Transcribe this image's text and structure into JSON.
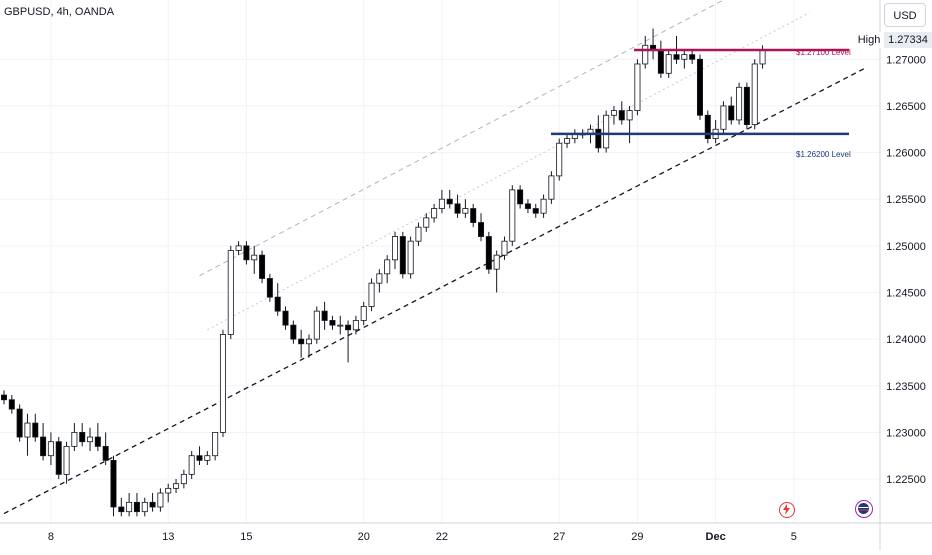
{
  "header": {
    "symbol": "GBPUSD, 4h, OANDA"
  },
  "currency_button": {
    "label": "USD"
  },
  "high_marker": {
    "label": "High",
    "price": "1.27334"
  },
  "levels": {
    "upper": {
      "label": "$1.27100 Level",
      "value": 1.271,
      "color": "#ad1457"
    },
    "lower": {
      "label": "$1.26200 Level",
      "value": 1.262,
      "color": "#1e3a78"
    }
  },
  "colors": {
    "up_body": "#ffffff",
    "down_body": "#000000",
    "wick": "#131722",
    "grid": "#f0f3fa",
    "axis_text": "#131722"
  },
  "chart_data": {
    "type": "candlestick",
    "title": "GBPUSD, 4h, OANDA",
    "y_range": [
      1.2205,
      1.2755
    ],
    "y_ticks": [
      "1.27000",
      "1.26500",
      "1.26000",
      "1.25500",
      "1.25000",
      "1.24500",
      "1.24000",
      "1.23500",
      "1.23000",
      "1.22500"
    ],
    "y_tick_values": [
      1.27,
      1.265,
      1.26,
      1.255,
      1.25,
      1.245,
      1.24,
      1.235,
      1.23,
      1.225
    ],
    "x_ticks": [
      {
        "label": "8",
        "bar": 6
      },
      {
        "label": "13",
        "bar": 21
      },
      {
        "label": "15",
        "bar": 31
      },
      {
        "label": "20",
        "bar": 46
      },
      {
        "label": "22",
        "bar": 56
      },
      {
        "label": "27",
        "bar": 71
      },
      {
        "label": "29",
        "bar": 81
      },
      {
        "label": "Dec",
        "bar": 91
      },
      {
        "label": "5",
        "bar": 101
      }
    ],
    "candles": [
      [
        1.234,
        1.2345,
        1.233,
        1.2335
      ],
      [
        1.2335,
        1.234,
        1.232,
        1.2325
      ],
      [
        1.2325,
        1.233,
        1.229,
        1.2295
      ],
      [
        1.2295,
        1.232,
        1.2275,
        1.231
      ],
      [
        1.231,
        1.232,
        1.229,
        1.2295
      ],
      [
        1.2295,
        1.231,
        1.227,
        1.2275
      ],
      [
        1.2275,
        1.23,
        1.2265,
        1.229
      ],
      [
        1.229,
        1.2295,
        1.225,
        1.2255
      ],
      [
        1.2255,
        1.229,
        1.2245,
        1.2285
      ],
      [
        1.2285,
        1.231,
        1.228,
        1.23
      ],
      [
        1.23,
        1.231,
        1.2285,
        1.229
      ],
      [
        1.229,
        1.2305,
        1.228,
        1.2295
      ],
      [
        1.2295,
        1.231,
        1.228,
        1.2285
      ],
      [
        1.2285,
        1.23,
        1.2265,
        1.227
      ],
      [
        1.227,
        1.2275,
        1.221,
        1.222
      ],
      [
        1.222,
        1.223,
        1.221,
        1.2215
      ],
      [
        1.2215,
        1.2235,
        1.221,
        1.2225
      ],
      [
        1.2225,
        1.2235,
        1.221,
        1.2215
      ],
      [
        1.2215,
        1.223,
        1.221,
        1.2225
      ],
      [
        1.2225,
        1.2235,
        1.2215,
        1.222
      ],
      [
        1.222,
        1.224,
        1.2215,
        1.2235
      ],
      [
        1.2235,
        1.2245,
        1.2225,
        1.224
      ],
      [
        1.224,
        1.225,
        1.2235,
        1.2245
      ],
      [
        1.2245,
        1.226,
        1.224,
        1.2255
      ],
      [
        1.2255,
        1.228,
        1.225,
        1.2275
      ],
      [
        1.2275,
        1.2285,
        1.2265,
        1.227
      ],
      [
        1.227,
        1.228,
        1.2265,
        1.2275
      ],
      [
        1.2275,
        1.23,
        1.227,
        1.23
      ],
      [
        1.23,
        1.241,
        1.2295,
        1.2405
      ],
      [
        1.2405,
        1.25,
        1.24,
        1.2495
      ],
      [
        1.2495,
        1.2505,
        1.249,
        1.25
      ],
      [
        1.25,
        1.2505,
        1.248,
        1.2485
      ],
      [
        1.2485,
        1.25,
        1.247,
        1.249
      ],
      [
        1.249,
        1.2495,
        1.246,
        1.2465
      ],
      [
        1.2465,
        1.247,
        1.244,
        1.2445
      ],
      [
        1.2445,
        1.246,
        1.2425,
        1.243
      ],
      [
        1.243,
        1.2435,
        1.241,
        1.2415
      ],
      [
        1.2415,
        1.242,
        1.2395,
        1.24
      ],
      [
        1.24,
        1.241,
        1.238,
        1.2395
      ],
      [
        1.2395,
        1.2405,
        1.238,
        1.24
      ],
      [
        1.24,
        1.2435,
        1.2395,
        1.243
      ],
      [
        1.243,
        1.244,
        1.241,
        1.242
      ],
      [
        1.242,
        1.2425,
        1.241,
        1.2415
      ],
      [
        1.2415,
        1.2425,
        1.2405,
        1.2415
      ],
      [
        1.2415,
        1.242,
        1.2375,
        1.241
      ],
      [
        1.241,
        1.2425,
        1.2405,
        1.242
      ],
      [
        1.242,
        1.244,
        1.2415,
        1.2435
      ],
      [
        1.2435,
        1.2465,
        1.243,
        1.246
      ],
      [
        1.246,
        1.2475,
        1.245,
        1.247
      ],
      [
        1.247,
        1.249,
        1.246,
        1.2485
      ],
      [
        1.2485,
        1.2515,
        1.2475,
        1.251
      ],
      [
        1.251,
        1.2515,
        1.2465,
        1.247
      ],
      [
        1.247,
        1.251,
        1.2465,
        1.2505
      ],
      [
        1.2505,
        1.2525,
        1.25,
        1.252
      ],
      [
        1.252,
        1.2535,
        1.2515,
        1.253
      ],
      [
        1.253,
        1.2545,
        1.2525,
        1.254
      ],
      [
        1.254,
        1.256,
        1.2535,
        1.255
      ],
      [
        1.255,
        1.256,
        1.254,
        1.2545
      ],
      [
        1.2545,
        1.2555,
        1.253,
        1.2535
      ],
      [
        1.2535,
        1.255,
        1.253,
        1.254
      ],
      [
        1.254,
        1.2545,
        1.252,
        1.2525
      ],
      [
        1.2525,
        1.2535,
        1.2505,
        1.251
      ],
      [
        1.251,
        1.2515,
        1.247,
        1.2475
      ],
      [
        1.2475,
        1.2495,
        1.245,
        1.249
      ],
      [
        1.249,
        1.251,
        1.2485,
        1.2505
      ],
      [
        1.2505,
        1.2565,
        1.25,
        1.256
      ],
      [
        1.256,
        1.2565,
        1.254,
        1.2545
      ],
      [
        1.2545,
        1.255,
        1.2535,
        1.254
      ],
      [
        1.254,
        1.2545,
        1.253,
        1.2535
      ],
      [
        1.2535,
        1.2555,
        1.253,
        1.255
      ],
      [
        1.255,
        1.258,
        1.2545,
        1.2575
      ],
      [
        1.2575,
        1.2615,
        1.257,
        1.261
      ],
      [
        1.261,
        1.262,
        1.2605,
        1.2615
      ],
      [
        1.2615,
        1.2625,
        1.261,
        1.262
      ],
      [
        1.262,
        1.2625,
        1.2615,
        1.262
      ],
      [
        1.262,
        1.263,
        1.261,
        1.2625
      ],
      [
        1.2625,
        1.264,
        1.26,
        1.2605
      ],
      [
        1.2605,
        1.2645,
        1.26,
        1.264
      ],
      [
        1.264,
        1.265,
        1.263,
        1.2645
      ],
      [
        1.2645,
        1.2655,
        1.263,
        1.2635
      ],
      [
        1.2635,
        1.265,
        1.261,
        1.2645
      ],
      [
        1.2645,
        1.27,
        1.264,
        1.2695
      ],
      [
        1.2695,
        1.2725,
        1.269,
        1.2715
      ],
      [
        1.2715,
        1.2733,
        1.27,
        1.271
      ],
      [
        1.271,
        1.272,
        1.268,
        1.2685
      ],
      [
        1.2685,
        1.271,
        1.268,
        1.2705
      ],
      [
        1.2705,
        1.2725,
        1.2695,
        1.27
      ],
      [
        1.27,
        1.271,
        1.269,
        1.2705
      ],
      [
        1.2705,
        1.271,
        1.2695,
        1.27
      ],
      [
        1.27,
        1.2705,
        1.2635,
        1.264
      ],
      [
        1.264,
        1.2645,
        1.261,
        1.2615
      ],
      [
        1.2615,
        1.2635,
        1.261,
        1.2625
      ],
      [
        1.2625,
        1.2655,
        1.262,
        1.265
      ],
      [
        1.265,
        1.266,
        1.263,
        1.2635
      ],
      [
        1.2635,
        1.2675,
        1.263,
        1.267
      ],
      [
        1.267,
        1.2675,
        1.2625,
        1.263
      ],
      [
        1.263,
        1.27,
        1.2625,
        1.2695
      ],
      [
        1.2695,
        1.2715,
        1.269,
        1.271
      ]
    ],
    "trendlines": [
      {
        "name": "lower-channel",
        "style": "dashed",
        "points": [
          [
            0,
            1.2213
          ],
          [
            110,
            1.269
          ]
        ]
      },
      {
        "name": "upper-channel",
        "style": "dashed-light",
        "points": [
          [
            25,
            1.2468
          ],
          [
            98,
            1.279
          ]
        ]
      },
      {
        "name": "mid-channel",
        "style": "dotted-light",
        "points": [
          [
            26,
            1.241
          ],
          [
            103,
            1.275
          ]
        ]
      }
    ],
    "grid": true
  }
}
